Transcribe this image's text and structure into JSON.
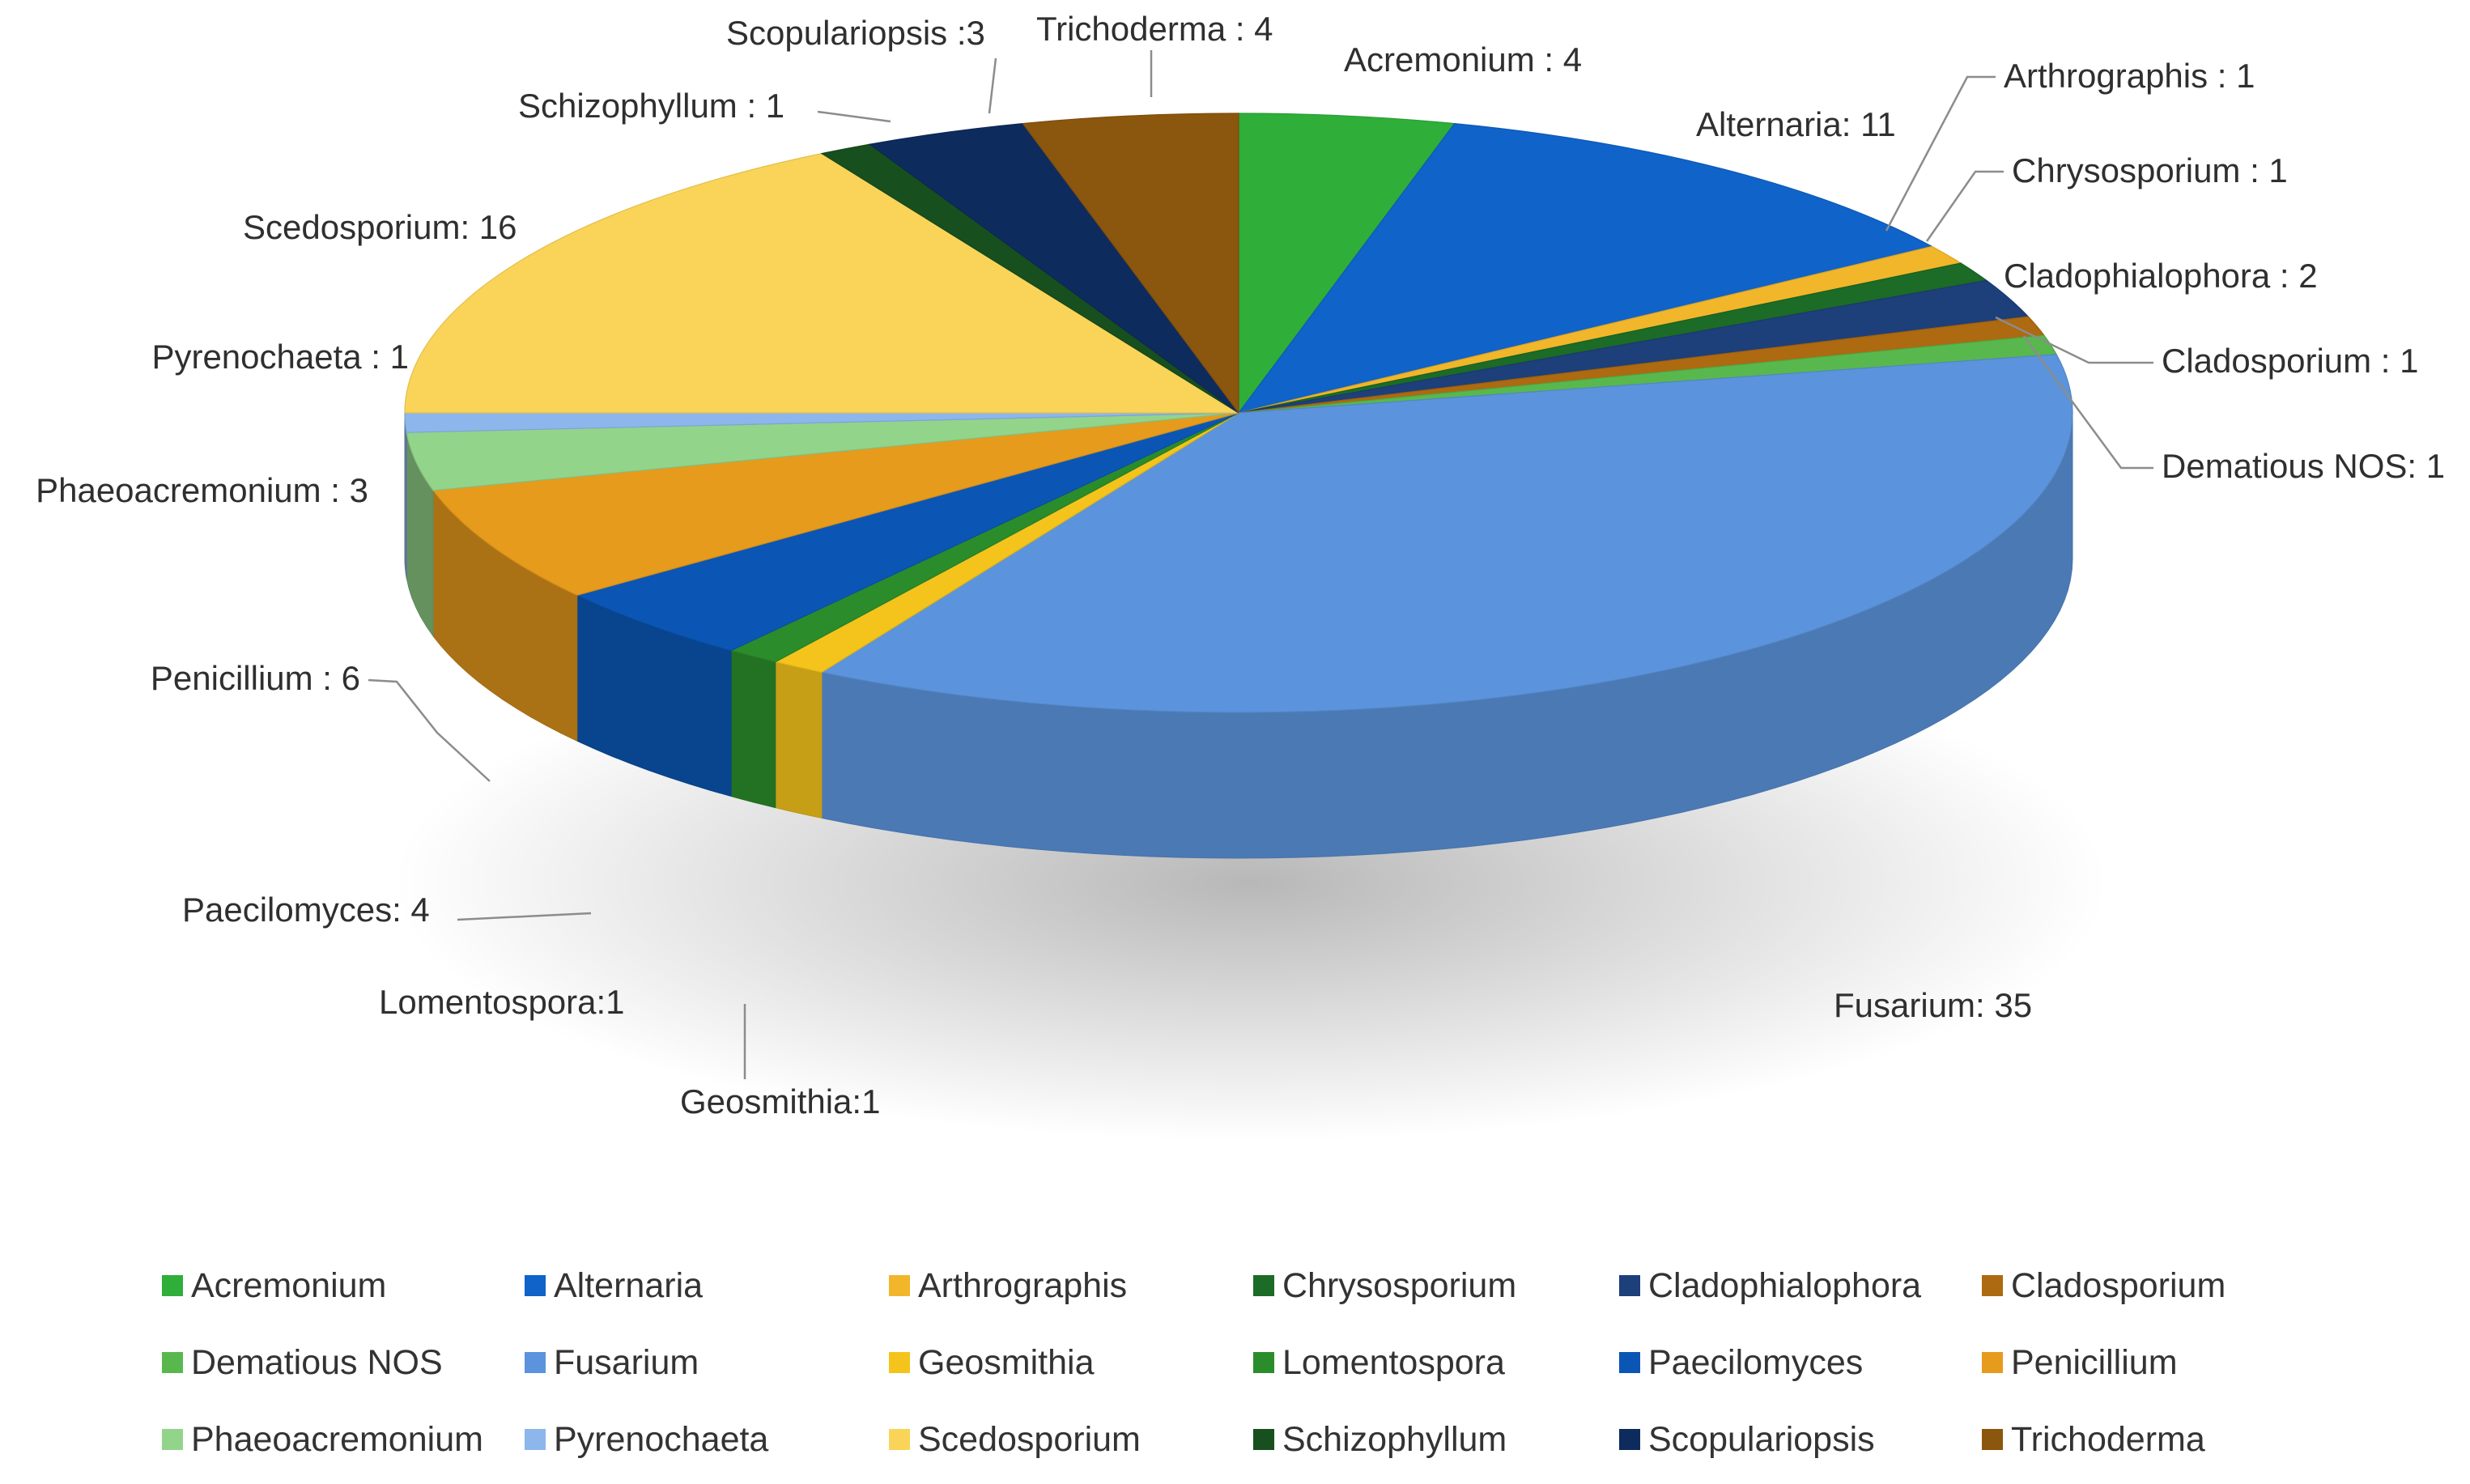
{
  "chart_data": {
    "type": "pie",
    "title": "",
    "style": "3d",
    "legend_position": "bottom",
    "slices": [
      {
        "name": "Acremonium",
        "value": 4,
        "label": "Acremonium : 4",
        "color": "#2fae3a"
      },
      {
        "name": "Alternaria",
        "value": 11,
        "label": "Alternaria: 11",
        "color": "#0f63c9"
      },
      {
        "name": "Arthrographis",
        "value": 1,
        "label": "Arthrographis : 1",
        "color": "#f2b62a"
      },
      {
        "name": "Chrysosporium",
        "value": 1,
        "label": "Chrysosporium : 1",
        "color": "#1c6b26"
      },
      {
        "name": "Cladophialophora",
        "value": 2,
        "label": "Cladophialophora : 2",
        "color": "#1d3f7a"
      },
      {
        "name": "Cladosporium",
        "value": 1,
        "label": "Cladosporium : 1",
        "color": "#ad6a10"
      },
      {
        "name": "Dematious NOS",
        "value": 1,
        "label": "Dematious NOS: 1",
        "color": "#58b84e"
      },
      {
        "name": "Fusarium",
        "value": 35,
        "label": "Fusarium: 35",
        "color": "#5b94dc"
      },
      {
        "name": "Geosmithia",
        "value": 1,
        "label": "Geosmithia:1",
        "color": "#f4c41c"
      },
      {
        "name": "Lomentospora",
        "value": 1,
        "label": "Lomentospora:1",
        "color": "#2b8c2b"
      },
      {
        "name": "Paecilomyces",
        "value": 4,
        "label": "Paecilomyces: 4",
        "color": "#0b56b5"
      },
      {
        "name": "Penicillium",
        "value": 6,
        "label": "Penicillium : 6",
        "color": "#e79b1c"
      },
      {
        "name": "Phaeoacremonium",
        "value": 3,
        "label": "Phaeoacremonium : 3",
        "color": "#93d48b"
      },
      {
        "name": "Pyrenochaeta",
        "value": 1,
        "label": "Pyrenochaeta : 1",
        "color": "#8cb6ec"
      },
      {
        "name": "Scedosporium",
        "value": 16,
        "label": "Scedosporium: 16",
        "color": "#fad458"
      },
      {
        "name": "Schizophyllum",
        "value": 1,
        "label": "Schizophyllum : 1",
        "color": "#174f1e"
      },
      {
        "name": "Scopulariopsis",
        "value": 3,
        "label": "Scopulariopsis :3",
        "color": "#0e2b5e"
      },
      {
        "name": "Trichoderma",
        "value": 4,
        "label": "Trichoderma : 4",
        "color": "#8b560d"
      }
    ]
  }
}
